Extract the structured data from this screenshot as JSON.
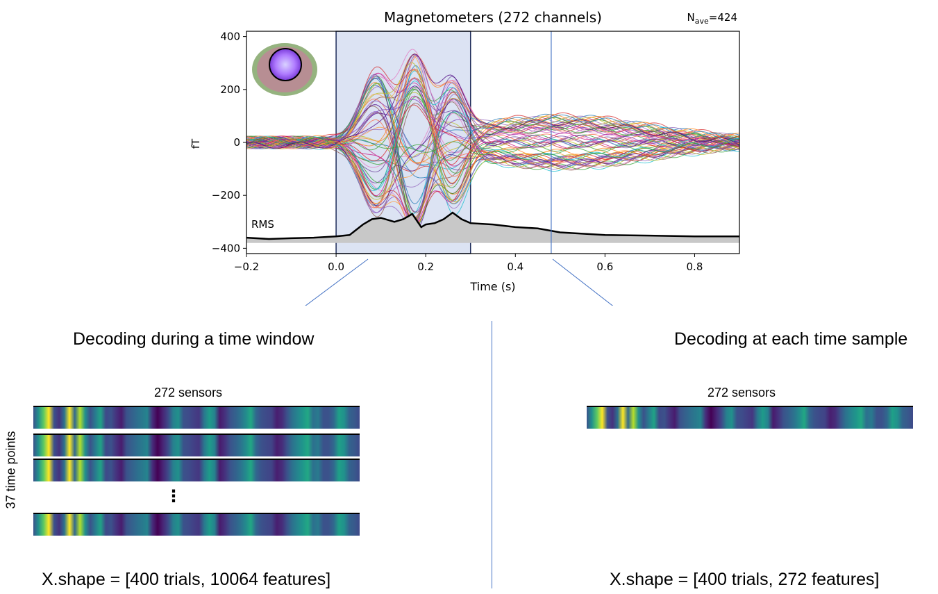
{
  "chart_data": {
    "type": "line",
    "title": "Magnetometers (272 channels)",
    "n_ave": "N",
    "n_ave_sub": "ave",
    "n_ave_value": "=424",
    "xlabel": "Time (s)",
    "ylabel": "fT",
    "xlim": [
      -0.2,
      0.9
    ],
    "ylim": [
      -420,
      420
    ],
    "x_ticks": [
      -0.2,
      0.0,
      0.2,
      0.4,
      0.6,
      0.8
    ],
    "x_tick_labels": [
      "−0.2",
      "0.0",
      "0.2",
      "0.4",
      "0.6",
      "0.8"
    ],
    "y_ticks": [
      400,
      200,
      0,
      -200,
      -400
    ],
    "y_tick_labels": [
      "400",
      "200",
      "0",
      "−200",
      "−400"
    ],
    "rms_label": "RMS",
    "highlight_window": [
      0.0,
      0.3
    ],
    "marker_time": 0.48,
    "rms_series": {
      "x": [
        -0.2,
        -0.15,
        -0.1,
        -0.05,
        0.0,
        0.03,
        0.06,
        0.08,
        0.1,
        0.13,
        0.15,
        0.17,
        0.19,
        0.2,
        0.22,
        0.24,
        0.26,
        0.28,
        0.3,
        0.35,
        0.4,
        0.45,
        0.5,
        0.6,
        0.7,
        0.8,
        0.9
      ],
      "y": [
        -360,
        -365,
        -362,
        -360,
        -355,
        -350,
        -310,
        -290,
        -285,
        -300,
        -290,
        -270,
        -320,
        -310,
        -305,
        -290,
        -265,
        -290,
        -305,
        -310,
        -320,
        -325,
        -340,
        -350,
        -352,
        -355,
        -355
      ]
    }
  },
  "sensor_colors": [
    "#3b528b",
    "#21918c",
    "#5ec962",
    "#fde725",
    "#3b528b",
    "#46327e",
    "#2c728e",
    "#fde725",
    "#31688e",
    "#b5de2b",
    "#21918c",
    "#3b528b",
    "#287c8e",
    "#20a386",
    "#3e4a89",
    "#3b528b",
    "#46337f",
    "#481c6e",
    "#3b528b",
    "#35608d",
    "#2e6e8e",
    "#29798e",
    "#25848e",
    "#472d7b",
    "#440154",
    "#482475",
    "#3f4889",
    "#27808e",
    "#21918c",
    "#3b528b",
    "#3e4c8a",
    "#424086",
    "#453781",
    "#2a788e",
    "#1e9b8a",
    "#26828e",
    "#481b6d",
    "#46327e",
    "#3b528b",
    "#34618d",
    "#2c728e",
    "#238a8d",
    "#22a884",
    "#31688e",
    "#3b528b",
    "#3e4a89",
    "#414487",
    "#481f70",
    "#472c7a",
    "#3b528b",
    "#2c728e",
    "#25858e",
    "#1f968b",
    "#22a884",
    "#2d708e",
    "#297a8e",
    "#3b528b",
    "#3b528b",
    "#31688e",
    "#1fa088",
    "#21918c",
    "#33638d",
    "#38598c",
    "#3e4a89"
  ],
  "left_panel": {
    "caption": "Decoding during a time window",
    "sensors_label": "272 sensors",
    "time_label": "37 time points",
    "ellipsis": "⋮",
    "shape_text": "X.shape = [400 trials, 10064 features]"
  },
  "right_panel": {
    "caption": "Decoding at each time sample",
    "sensors_label": "272 sensors",
    "shape_text": "X.shape = [400 trials, 272 features]"
  }
}
